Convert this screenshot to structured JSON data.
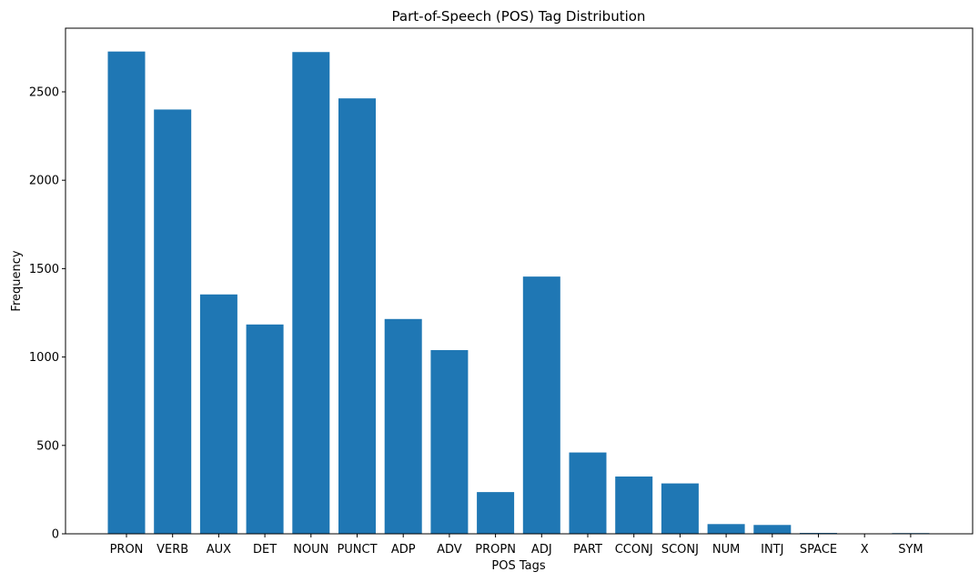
{
  "chart_data": {
    "type": "bar",
    "title": "Part-of-Speech (POS) Tag Distribution",
    "xlabel": "POS Tags",
    "ylabel": "Frequency",
    "categories": [
      "PRON",
      "VERB",
      "AUX",
      "DET",
      "NOUN",
      "PUNCT",
      "ADP",
      "ADV",
      "PROPN",
      "ADJ",
      "PART",
      "CCONJ",
      "SCONJ",
      "NUM",
      "INTJ",
      "SPACE",
      "X",
      "SYM"
    ],
    "values": [
      2728,
      2400,
      1354,
      1184,
      2725,
      2463,
      1215,
      1039,
      236,
      1455,
      460,
      324,
      285,
      55,
      50,
      5,
      1,
      4
    ],
    "ylim": [
      0,
      2860
    ],
    "yticks": [
      0,
      500,
      1000,
      1500,
      2000,
      2500
    ],
    "bar_color": "#1f77b4",
    "grid": false,
    "legend": false
  }
}
